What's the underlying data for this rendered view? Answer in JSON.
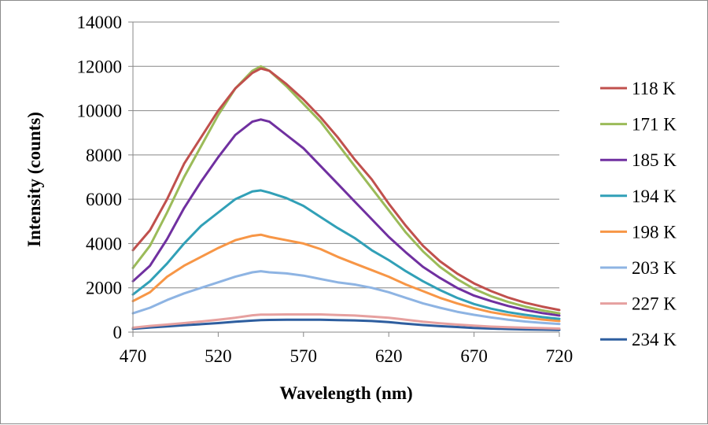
{
  "chart_data": {
    "type": "line",
    "title": "",
    "xlabel": "Wavelength (nm)",
    "ylabel": "Intensity  (counts)",
    "xlim": [
      470,
      720
    ],
    "ylim": [
      0,
      14000
    ],
    "x_ticks": [
      470,
      520,
      570,
      620,
      670,
      720
    ],
    "y_ticks": [
      0,
      2000,
      4000,
      6000,
      8000,
      10000,
      12000,
      14000
    ],
    "grid": "horizontal-major",
    "legend_position": "right",
    "x": [
      470,
      480,
      490,
      500,
      510,
      520,
      530,
      540,
      545,
      550,
      560,
      570,
      580,
      590,
      600,
      610,
      620,
      630,
      640,
      650,
      660,
      670,
      680,
      690,
      700,
      710,
      720
    ],
    "series": [
      {
        "name": "118 K",
        "color": "#c0504d",
        "values": [
          3700,
          4600,
          6000,
          7600,
          8800,
          10000,
          11000,
          11700,
          11900,
          11800,
          11200,
          10500,
          9700,
          8800,
          7800,
          6900,
          5800,
          4800,
          3900,
          3200,
          2650,
          2200,
          1850,
          1560,
          1330,
          1150,
          1000
        ]
      },
      {
        "name": "171 K",
        "color": "#9bbb59",
        "values": [
          2900,
          3900,
          5400,
          7000,
          8400,
          9800,
          11000,
          11800,
          12000,
          11800,
          11100,
          10300,
          9500,
          8500,
          7500,
          6500,
          5500,
          4500,
          3650,
          2950,
          2400,
          1950,
          1620,
          1360,
          1150,
          980,
          850
        ]
      },
      {
        "name": "185 K",
        "color": "#7030a0",
        "values": [
          2300,
          3000,
          4200,
          5600,
          6800,
          7900,
          8900,
          9500,
          9600,
          9500,
          8900,
          8300,
          7500,
          6700,
          5900,
          5100,
          4300,
          3600,
          2950,
          2450,
          2000,
          1650,
          1400,
          1180,
          1000,
          860,
          750
        ]
      },
      {
        "name": "194 K",
        "color": "#31a0b7",
        "values": [
          1700,
          2300,
          3100,
          4000,
          4800,
          5400,
          6000,
          6350,
          6400,
          6300,
          6050,
          5700,
          5200,
          4700,
          4250,
          3700,
          3250,
          2750,
          2300,
          1900,
          1550,
          1270,
          1060,
          900,
          780,
          680,
          600
        ]
      },
      {
        "name": "198 K",
        "color": "#f79646",
        "values": [
          1400,
          1800,
          2500,
          3000,
          3400,
          3800,
          4150,
          4350,
          4400,
          4300,
          4150,
          4000,
          3750,
          3400,
          3100,
          2800,
          2500,
          2150,
          1850,
          1550,
          1300,
          1080,
          900,
          770,
          660,
          570,
          500
        ]
      },
      {
        "name": "203 K",
        "color": "#8eb4e3",
        "values": [
          850,
          1100,
          1450,
          1750,
          2000,
          2250,
          2500,
          2700,
          2750,
          2700,
          2650,
          2550,
          2400,
          2250,
          2150,
          2000,
          1800,
          1550,
          1300,
          1100,
          920,
          780,
          660,
          560,
          480,
          420,
          370
        ]
      },
      {
        "name": "227 K",
        "color": "#e6a09f",
        "values": [
          200,
          280,
          340,
          410,
          480,
          560,
          650,
          760,
          790,
          790,
          800,
          800,
          800,
          770,
          750,
          700,
          650,
          560,
          470,
          400,
          340,
          290,
          250,
          220,
          200,
          180,
          160
        ]
      },
      {
        "name": "234 K",
        "color": "#2e5e9f",
        "values": [
          150,
          210,
          260,
          310,
          360,
          410,
          470,
          520,
          540,
          550,
          560,
          560,
          560,
          540,
          530,
          500,
          450,
          380,
          320,
          270,
          230,
          190,
          160,
          140,
          120,
          110,
          100
        ]
      }
    ]
  }
}
